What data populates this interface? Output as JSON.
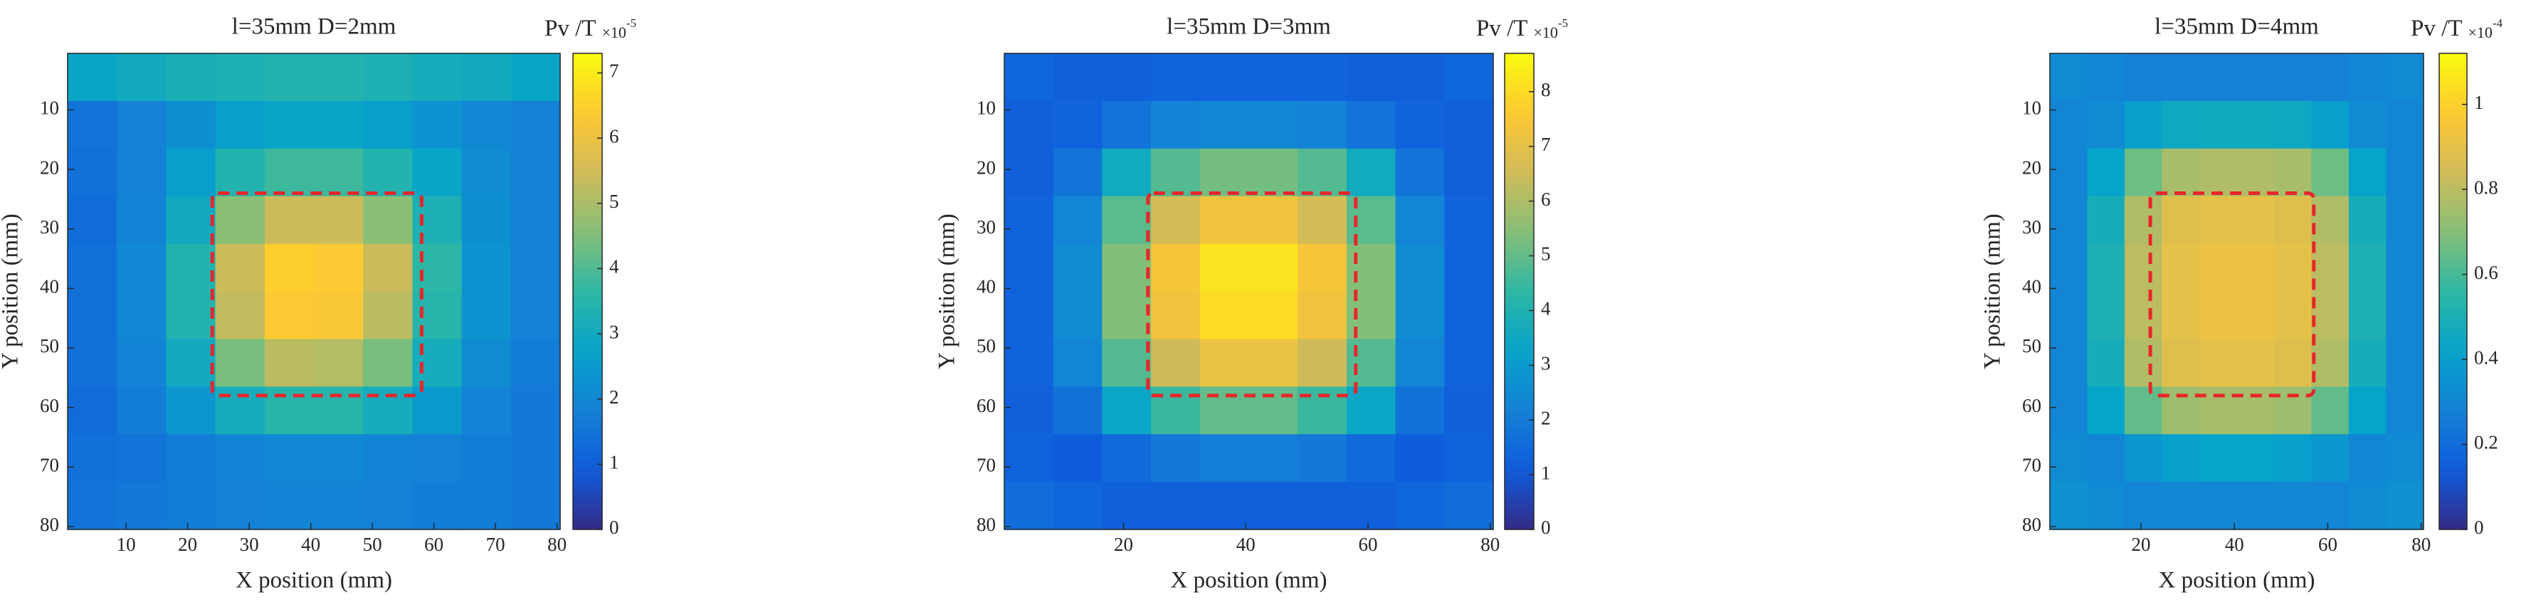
{
  "chart_data": [
    {
      "type": "heatmap",
      "title": "l=35mm D=2mm",
      "xlabel": "X position (mm)",
      "ylabel": "Y position (mm)",
      "x": [
        4.5,
        12.5,
        20.5,
        28.5,
        36.5,
        44.5,
        52.5,
        60.5,
        68.5,
        76.5
      ],
      "y": [
        4.5,
        12.5,
        20.5,
        28.5,
        36.5,
        44.5,
        52.5,
        60.5,
        68.5,
        76.5
      ],
      "values": [
        [
          2.8,
          3.0,
          3.2,
          3.3,
          3.4,
          3.4,
          3.3,
          3.1,
          3.0,
          2.8
        ],
        [
          1.5,
          1.8,
          2.2,
          2.6,
          2.8,
          2.8,
          2.6,
          2.3,
          2.0,
          1.8
        ],
        [
          1.4,
          1.8,
          2.6,
          3.4,
          3.8,
          3.8,
          3.4,
          2.8,
          2.1,
          1.8
        ],
        [
          1.3,
          1.9,
          3.0,
          4.6,
          5.4,
          5.4,
          4.6,
          3.3,
          2.2,
          1.8
        ],
        [
          1.4,
          2.0,
          3.4,
          5.4,
          6.5,
          6.4,
          5.4,
          3.6,
          2.3,
          1.8
        ],
        [
          1.4,
          2.0,
          3.4,
          5.3,
          6.4,
          6.3,
          5.2,
          3.5,
          2.3,
          1.8
        ],
        [
          1.4,
          1.9,
          3.0,
          4.4,
          5.2,
          5.1,
          4.4,
          3.1,
          2.1,
          1.7
        ],
        [
          1.3,
          1.7,
          2.4,
          3.1,
          3.5,
          3.5,
          3.1,
          2.5,
          1.9,
          1.6
        ],
        [
          1.4,
          1.5,
          1.7,
          1.9,
          2.0,
          2.0,
          1.9,
          1.8,
          1.7,
          1.6
        ],
        [
          1.5,
          1.6,
          1.7,
          1.8,
          1.9,
          1.9,
          1.8,
          1.7,
          1.7,
          1.6
        ]
      ],
      "xlim": [
        0.5,
        80.5
      ],
      "ylim": [
        80.5,
        0.5
      ],
      "xticks": [
        10,
        20,
        30,
        40,
        50,
        60,
        70,
        80
      ],
      "yticks": [
        10,
        20,
        30,
        40,
        50,
        60,
        70,
        80
      ],
      "colormap": "parula",
      "colorbar": {
        "label": "Pv /T",
        "multiplier": "×10",
        "exponent": "-5",
        "clim": [
          0,
          7.3
        ],
        "ticks": [
          0,
          1,
          2,
          3,
          4,
          5,
          6,
          7
        ]
      },
      "box": {
        "x": [
          24,
          58
        ],
        "y": [
          24,
          58
        ],
        "color": "#e8262a"
      }
    },
    {
      "type": "heatmap",
      "title": "l=35mm D=3mm",
      "xlabel": "X position (mm)",
      "ylabel": "Y position (mm)",
      "x": [
        4.5,
        12.5,
        20.5,
        28.5,
        36.5,
        44.5,
        52.5,
        60.5,
        68.5,
        76.5
      ],
      "y": [
        4.5,
        12.5,
        20.5,
        28.5,
        36.5,
        44.5,
        52.5,
        60.5,
        68.5,
        76.5
      ],
      "values": [
        [
          1.4,
          1.2,
          1.2,
          1.3,
          1.3,
          1.3,
          1.3,
          1.2,
          1.2,
          1.4
        ],
        [
          1.2,
          1.3,
          1.8,
          2.2,
          2.4,
          2.4,
          2.2,
          1.8,
          1.3,
          1.2
        ],
        [
          1.2,
          1.8,
          3.6,
          4.8,
          5.2,
          5.2,
          4.8,
          3.6,
          1.8,
          1.2
        ],
        [
          1.3,
          2.3,
          4.9,
          6.6,
          7.3,
          7.3,
          6.6,
          4.9,
          2.3,
          1.3
        ],
        [
          1.3,
          2.5,
          5.4,
          7.4,
          8.2,
          8.2,
          7.4,
          5.4,
          2.5,
          1.3
        ],
        [
          1.3,
          2.5,
          5.4,
          7.3,
          8.0,
          8.0,
          7.3,
          5.4,
          2.5,
          1.3
        ],
        [
          1.3,
          2.3,
          4.8,
          6.5,
          7.1,
          7.1,
          6.5,
          4.8,
          2.3,
          1.3
        ],
        [
          1.2,
          1.7,
          3.4,
          4.5,
          5.0,
          5.0,
          4.5,
          3.4,
          1.7,
          1.2
        ],
        [
          1.3,
          1.1,
          1.5,
          1.9,
          2.1,
          2.1,
          1.9,
          1.5,
          1.1,
          1.3
        ],
        [
          1.6,
          1.4,
          1.2,
          1.2,
          1.2,
          1.2,
          1.2,
          1.2,
          1.4,
          1.6
        ]
      ],
      "xlim": [
        0.5,
        80.5
      ],
      "ylim": [
        80.5,
        0.5
      ],
      "xticks": [
        20,
        40,
        60,
        80
      ],
      "yticks": [
        10,
        20,
        30,
        40,
        50,
        60,
        70,
        80
      ],
      "colormap": "parula",
      "colorbar": {
        "label": "Pv /T",
        "multiplier": "×10",
        "exponent": "-5",
        "clim": [
          0,
          8.7
        ],
        "ticks": [
          0,
          1,
          2,
          3,
          4,
          5,
          6,
          7,
          8
        ]
      },
      "box": {
        "x": [
          24,
          58
        ],
        "y": [
          24,
          58
        ],
        "color": "#e8262a"
      }
    },
    {
      "type": "heatmap",
      "title": "l=35mm D=4mm",
      "xlabel": "X position (mm)",
      "ylabel": "Y position (mm)",
      "x": [
        4.5,
        12.5,
        20.5,
        28.5,
        36.5,
        44.5,
        52.5,
        60.5,
        68.5,
        76.5
      ],
      "y": [
        4.5,
        12.5,
        20.5,
        28.5,
        36.5,
        44.5,
        52.5,
        60.5,
        68.5,
        76.5
      ],
      "values": [
        [
          0.32,
          0.3,
          0.28,
          0.28,
          0.28,
          0.28,
          0.28,
          0.28,
          0.3,
          0.32
        ],
        [
          0.3,
          0.32,
          0.4,
          0.45,
          0.46,
          0.46,
          0.45,
          0.4,
          0.32,
          0.3
        ],
        [
          0.3,
          0.42,
          0.66,
          0.76,
          0.78,
          0.78,
          0.76,
          0.66,
          0.42,
          0.3
        ],
        [
          0.3,
          0.48,
          0.78,
          0.88,
          0.9,
          0.9,
          0.88,
          0.78,
          0.48,
          0.3
        ],
        [
          0.3,
          0.5,
          0.8,
          0.9,
          0.92,
          0.92,
          0.9,
          0.8,
          0.5,
          0.3
        ],
        [
          0.3,
          0.5,
          0.8,
          0.9,
          0.92,
          0.92,
          0.9,
          0.8,
          0.5,
          0.3
        ],
        [
          0.3,
          0.48,
          0.78,
          0.88,
          0.9,
          0.9,
          0.88,
          0.78,
          0.48,
          0.3
        ],
        [
          0.3,
          0.42,
          0.64,
          0.74,
          0.76,
          0.76,
          0.74,
          0.64,
          0.42,
          0.3
        ],
        [
          0.32,
          0.3,
          0.36,
          0.4,
          0.42,
          0.42,
          0.4,
          0.36,
          0.3,
          0.32
        ],
        [
          0.34,
          0.32,
          0.3,
          0.3,
          0.3,
          0.3,
          0.3,
          0.3,
          0.32,
          0.34
        ]
      ],
      "xlim": [
        0.5,
        80.5
      ],
      "ylim": [
        80.5,
        0.5
      ],
      "xticks": [
        20,
        40,
        60,
        80
      ],
      "yticks": [
        10,
        20,
        30,
        40,
        50,
        60,
        70,
        80
      ],
      "colormap": "parula",
      "colorbar": {
        "label": "Pv /T",
        "multiplier": "×10",
        "exponent": "-4",
        "clim": [
          0,
          1.12
        ],
        "ticks": [
          0,
          0.2,
          0.4,
          0.6,
          0.8,
          1
        ]
      },
      "box": {
        "x": [
          22,
          57
        ],
        "y": [
          24,
          58
        ],
        "color": "#e8262a"
      }
    }
  ]
}
